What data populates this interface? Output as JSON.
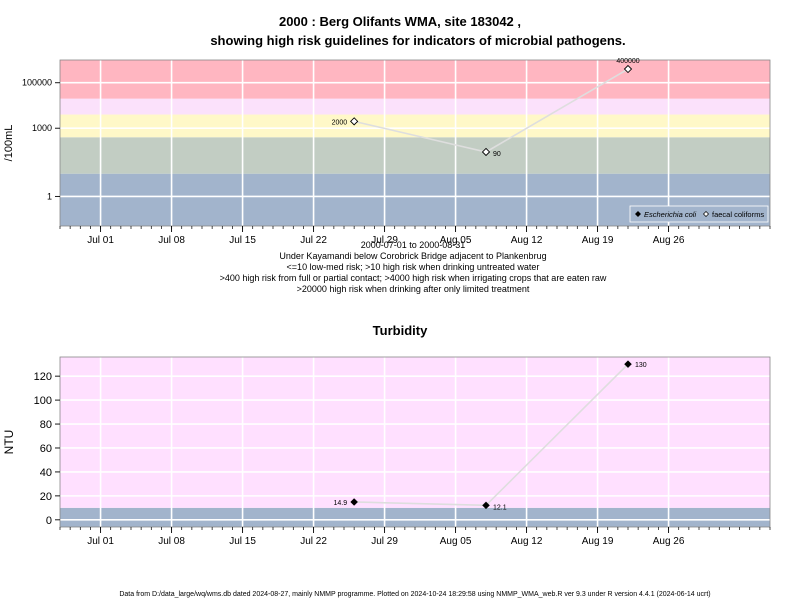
{
  "main_title": {
    "line1": "2000 : Berg Olifants WMA, site 183042 ,",
    "line2": "showing high risk guidelines for indicators of microbial pathogens."
  },
  "footer": "Data from D:/data_large/wq/wms.db dated 2024-08-27, mainly NMMP programme. Plotted on 2024-10-24 18:29:58 using NMMP_WMA_web.R ver 9.3 under R version 4.4.1 (2024-06-14 ucrt)",
  "colors": {
    "band_high": "#FFB6C1",
    "band_mid_pink": "#F8D0EC",
    "band_light_pink": "#FBE1FB",
    "band_yellow": "#FFF8C8",
    "band_green": "#C2CDC3",
    "band_blue": "#A2B4CC",
    "panel_bg": "#FFE0FF",
    "line": "#DEDEDE",
    "grid": "#FFFFFF"
  },
  "chart_data": [
    {
      "type": "line",
      "title": "",
      "xlabel": "",
      "ylabel": "/100mL",
      "log_y": true,
      "xlim": [
        "2000-06-27",
        "2000-09-05"
      ],
      "ylim": [
        0.05,
        999999
      ],
      "x_ticks": [
        "Jul 01",
        "Jul 08",
        "Jul 15",
        "Jul 22",
        "Jul 29",
        "Aug 05",
        "Aug 12",
        "Aug 19",
        "Aug 26"
      ],
      "y_ticks": [
        1,
        1000,
        100000
      ],
      "y_tick_labels": [
        "1",
        "1000",
        "100000"
      ],
      "grid": true,
      "risk_bands": [
        {
          "from": 0.05,
          "to": 10,
          "color_key": "band_blue"
        },
        {
          "from": 10,
          "to": 400,
          "color_key": "band_green"
        },
        {
          "from": 400,
          "to": 4000,
          "color_key": "band_yellow"
        },
        {
          "from": 4000,
          "to": 20000,
          "color_key": "band_light_pink"
        },
        {
          "from": 20000,
          "to": 999999,
          "color_key": "band_high"
        }
      ],
      "series": [
        {
          "name": "faecal coliforms",
          "points": [
            {
              "x": "2000-07-26",
              "y": 2000,
              "label": "2000"
            },
            {
              "x": "2000-08-08",
              "y": 90,
              "label": "90"
            },
            {
              "x": "2000-08-22",
              "y": 400000,
              "label": "400000"
            }
          ]
        }
      ],
      "legend": {
        "position": "bottom-right",
        "entries": [
          {
            "label": "Escherichia coli",
            "marker": "filled-diamond",
            "italic": true
          },
          {
            "label": "faecal coliforms",
            "marker": "open-diamond",
            "italic": false
          }
        ]
      },
      "notes": [
        "2000-07-01 to 2000-08-31",
        "Under Kayamandi below Corobrick Bridge adjacent to Plankenbrug",
        "<=10 low-med risk; >10 high risk when drinking untreated water",
        ">400 high risk from full or partial contact; >4000 high risk when irrigating crops that are eaten raw",
        ">20000 high risk when drinking after only limited treatment"
      ]
    },
    {
      "type": "line",
      "title": "Turbidity",
      "xlabel": "",
      "ylabel": "NTU",
      "log_y": false,
      "xlim": [
        "2000-06-27",
        "2000-09-05"
      ],
      "ylim": [
        -6,
        136
      ],
      "x_ticks": [
        "Jul 01",
        "Jul 08",
        "Jul 15",
        "Jul 22",
        "Jul 29",
        "Aug 05",
        "Aug 12",
        "Aug 19",
        "Aug 26"
      ],
      "y_ticks": [
        0,
        20,
        40,
        60,
        80,
        100,
        120
      ],
      "y_tick_labels": [
        "0",
        "20",
        "40",
        "60",
        "80",
        "100",
        "120"
      ],
      "grid": true,
      "risk_bands": [
        {
          "from": -6,
          "to": 10,
          "color_key": "band_blue"
        },
        {
          "from": 10,
          "to": 136,
          "color_key": "panel_bg"
        }
      ],
      "series": [
        {
          "name": "",
          "points": [
            {
              "x": "2000-07-26",
              "y": 14.9,
              "label": "14.9"
            },
            {
              "x": "2000-08-08",
              "y": 12.1,
              "label": "12.1"
            },
            {
              "x": "2000-08-22",
              "y": 130,
              "label": "130"
            }
          ]
        }
      ]
    }
  ]
}
